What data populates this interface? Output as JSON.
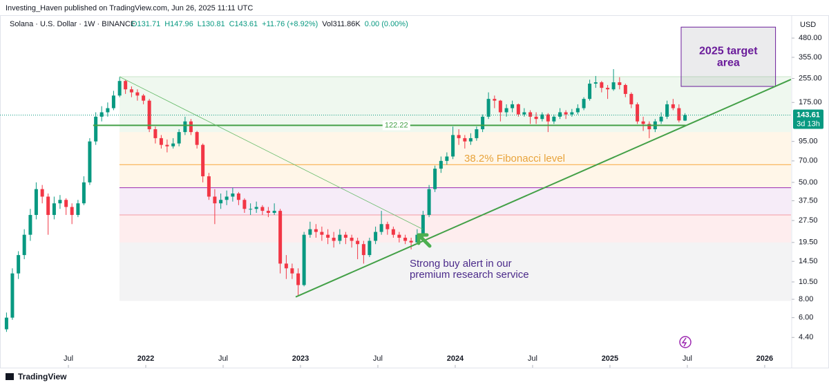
{
  "header": {
    "publisher": "Investing_Haven published on TradingView.com, Jun 26, 2025 11:11 UTC",
    "footer": "TradingView"
  },
  "chart_data": {
    "type": "candlestick",
    "symbol": "Solana · U.S. Dollar · 1W · BINANCE",
    "legend_values": [
      "O131.71",
      "H147.96",
      "L130.81",
      "C143.61",
      "+11.76 (+8.92%)"
    ],
    "volume": "Vol311.86K",
    "volume_change": "0.00 (0.00%)",
    "currency": "USD",
    "countdown": "3d 13h",
    "up_color": "#089981",
    "down_color": "#f23645",
    "log_scale": true,
    "xlim": [
      2021.058,
      2026.17
    ],
    "ylim": [
      2.74,
      687
    ],
    "xticks": [
      {
        "value": 2021.5,
        "label": "Jul"
      },
      2022,
      {
        "value": 2022.5,
        "label": "Jul"
      },
      2023,
      {
        "value": 2023.5,
        "label": "Jul"
      },
      2024,
      {
        "value": 2024.5,
        "label": "Jul"
      },
      2025,
      {
        "value": 2025.5,
        "label": "Jul"
      },
      2026
    ],
    "yticks": [
      {
        "value": 480,
        "label": "480.00"
      },
      {
        "value": 355,
        "label": "355.00"
      },
      {
        "value": 255,
        "label": "255.00"
      },
      {
        "value": 175,
        "label": "175.00"
      },
      {
        "value": 95,
        "label": "95.00"
      },
      {
        "value": 70,
        "label": "70.00"
      },
      {
        "value": 50,
        "label": "50.00"
      },
      {
        "value": 37.5,
        "label": "37.50"
      },
      {
        "value": 27.5,
        "label": "27.50"
      },
      {
        "value": 19.5,
        "label": "19.50"
      },
      {
        "value": 14.5,
        "label": "14.50"
      },
      {
        "value": 10.5,
        "label": "10.50"
      },
      {
        "value": 8,
        "label": "8.00"
      },
      {
        "value": 6,
        "label": "6.00"
      },
      {
        "value": 4.4,
        "label": "4.40"
      }
    ],
    "x": [
      2021.1,
      2021.138,
      2021.177,
      2021.215,
      2021.254,
      2021.292,
      2021.331,
      2021.369,
      2021.408,
      2021.446,
      2021.485,
      2021.523,
      2021.562,
      2021.6,
      2021.638,
      2021.677,
      2021.715,
      2021.754,
      2021.792,
      2021.831,
      2021.869,
      2021.908,
      2021.946,
      2021.985,
      2022.023,
      2022.062,
      2022.1,
      2022.138,
      2022.177,
      2022.215,
      2022.254,
      2022.292,
      2022.331,
      2022.369,
      2022.408,
      2022.446,
      2022.485,
      2022.523,
      2022.562,
      2022.6,
      2022.638,
      2022.677,
      2022.715,
      2022.754,
      2022.792,
      2022.831,
      2022.869,
      2022.908,
      2022.946,
      2022.985,
      2023.023,
      2023.062,
      2023.1,
      2023.138,
      2023.177,
      2023.215,
      2023.254,
      2023.292,
      2023.331,
      2023.369,
      2023.408,
      2023.446,
      2023.485,
      2023.523,
      2023.562,
      2023.6,
      2023.638,
      2023.677,
      2023.715,
      2023.754,
      2023.792,
      2023.831,
      2023.869,
      2023.908,
      2023.946,
      2023.985,
      2024.023,
      2024.062,
      2024.1,
      2024.138,
      2024.177,
      2024.215,
      2024.254,
      2024.292,
      2024.331,
      2024.369,
      2024.408,
      2024.446,
      2024.485,
      2024.523,
      2024.562,
      2024.6,
      2024.638,
      2024.677,
      2024.715,
      2024.754,
      2024.792,
      2024.831,
      2024.869,
      2024.908,
      2024.946,
      2024.985,
      2025.023,
      2025.062,
      2025.1,
      2025.138,
      2025.177,
      2025.215,
      2025.254,
      2025.292,
      2025.331,
      2025.369,
      2025.408,
      2025.446,
      2025.485
    ],
    "candles": [
      [
        5,
        6.5,
        4.8,
        6
      ],
      [
        6,
        13,
        5.8,
        12
      ],
      [
        12,
        17,
        11,
        16
      ],
      [
        16,
        24,
        15,
        22
      ],
      [
        22,
        33,
        20,
        30
      ],
      [
        30,
        50,
        28,
        45
      ],
      [
        45,
        48,
        36,
        40
      ],
      [
        40,
        42,
        22,
        30
      ],
      [
        30,
        40,
        28,
        36
      ],
      [
        36,
        41,
        33,
        38
      ],
      [
        38,
        39,
        30,
        34
      ],
      [
        34,
        36,
        26,
        30
      ],
      [
        30,
        38,
        29,
        36
      ],
      [
        36,
        55,
        35,
        50
      ],
      [
        50,
        100,
        48,
        95
      ],
      [
        95,
        150,
        90,
        140
      ],
      [
        140,
        165,
        130,
        150
      ],
      [
        150,
        175,
        140,
        160
      ],
      [
        160,
        210,
        155,
        195
      ],
      [
        195,
        260,
        190,
        245
      ],
      [
        245,
        250,
        200,
        215
      ],
      [
        215,
        225,
        190,
        205
      ],
      [
        205,
        215,
        180,
        195
      ],
      [
        195,
        200,
        170,
        180
      ],
      [
        180,
        185,
        110,
        115
      ],
      [
        115,
        120,
        92,
        100
      ],
      [
        100,
        105,
        85,
        90
      ],
      [
        90,
        98,
        80,
        88
      ],
      [
        88,
        100,
        85,
        92
      ],
      [
        92,
        115,
        88,
        110
      ],
      [
        110,
        140,
        105,
        130
      ],
      [
        130,
        135,
        105,
        110
      ],
      [
        110,
        112,
        85,
        90
      ],
      [
        90,
        92,
        50,
        55
      ],
      [
        55,
        58,
        38,
        40
      ],
      [
        40,
        45,
        26,
        36
      ],
      [
        36,
        42,
        33,
        38
      ],
      [
        38,
        44,
        35,
        40
      ],
      [
        40,
        46,
        37,
        42
      ],
      [
        42,
        43,
        35,
        38
      ],
      [
        38,
        39,
        31,
        33
      ],
      [
        33,
        36,
        30,
        33
      ],
      [
        33,
        37,
        31,
        34
      ],
      [
        34,
        35,
        30,
        32
      ],
      [
        32,
        34,
        29,
        31
      ],
      [
        31,
        36,
        30,
        32
      ],
      [
        32,
        33,
        12,
        14
      ],
      [
        14,
        16,
        11,
        13
      ],
      [
        13,
        14,
        11,
        12
      ],
      [
        12,
        13,
        8.5,
        10
      ],
      [
        10,
        23,
        9.8,
        22
      ],
      [
        22,
        27,
        21,
        24
      ],
      [
        24,
        26,
        21,
        23
      ],
      [
        23,
        25,
        20,
        22
      ],
      [
        22,
        24,
        19,
        21
      ],
      [
        21,
        23,
        18,
        20
      ],
      [
        20,
        24,
        19,
        22
      ],
      [
        22,
        23,
        19,
        21
      ],
      [
        21,
        22,
        18,
        20
      ],
      [
        20,
        21,
        15,
        19
      ],
      [
        19,
        20,
        14,
        16
      ],
      [
        16,
        21,
        15.5,
        20
      ],
      [
        20,
        25,
        19,
        23
      ],
      [
        23,
        32,
        22,
        26
      ],
      [
        26,
        27,
        22,
        24
      ],
      [
        24,
        25,
        21,
        22
      ],
      [
        22,
        23,
        19.5,
        21
      ],
      [
        21,
        22,
        19,
        20
      ],
      [
        20,
        21,
        17.5,
        19.5
      ],
      [
        19.5,
        24,
        19,
        22
      ],
      [
        22,
        32,
        21,
        30
      ],
      [
        30,
        48,
        29,
        45
      ],
      [
        45,
        65,
        43,
        62
      ],
      [
        62,
        75,
        58,
        70
      ],
      [
        70,
        80,
        66,
        75
      ],
      [
        75,
        120,
        72,
        105
      ],
      [
        105,
        115,
        90,
        100
      ],
      [
        100,
        105,
        85,
        95
      ],
      [
        95,
        108,
        90,
        100
      ],
      [
        100,
        120,
        96,
        115
      ],
      [
        115,
        145,
        110,
        140
      ],
      [
        140,
        205,
        135,
        185
      ],
      [
        185,
        195,
        160,
        180
      ],
      [
        180,
        182,
        130,
        150
      ],
      [
        150,
        170,
        140,
        160
      ],
      [
        160,
        180,
        150,
        170
      ],
      [
        170,
        172,
        140,
        145
      ],
      [
        145,
        160,
        140,
        150
      ],
      [
        150,
        155,
        125,
        140
      ],
      [
        140,
        150,
        125,
        135
      ],
      [
        135,
        150,
        130,
        145
      ],
      [
        145,
        148,
        110,
        130
      ],
      [
        130,
        145,
        125,
        140
      ],
      [
        140,
        160,
        135,
        150
      ],
      [
        150,
        155,
        135,
        145
      ],
      [
        145,
        158,
        140,
        150
      ],
      [
        150,
        170,
        145,
        160
      ],
      [
        160,
        190,
        155,
        185
      ],
      [
        185,
        250,
        180,
        235
      ],
      [
        235,
        265,
        220,
        240
      ],
      [
        240,
        245,
        205,
        220
      ],
      [
        220,
        230,
        185,
        215
      ],
      [
        215,
        295,
        210,
        240
      ],
      [
        240,
        260,
        215,
        230
      ],
      [
        230,
        235,
        190,
        200
      ],
      [
        200,
        205,
        160,
        170
      ],
      [
        170,
        175,
        125,
        130
      ],
      [
        130,
        140,
        112,
        125
      ],
      [
        125,
        130,
        100,
        115
      ],
      [
        115,
        135,
        110,
        130
      ],
      [
        130,
        150,
        125,
        140
      ],
      [
        140,
        180,
        135,
        170
      ],
      [
        170,
        185,
        155,
        160
      ],
      [
        160,
        170,
        128,
        132
      ],
      [
        131.71,
        147.96,
        130.81,
        143.61
      ]
    ],
    "zone_start": 2021.83,
    "zones": [
      {
        "top": 262,
        "bottom": 110,
        "color": "rgba(76,175,80,0.09)"
      },
      {
        "top": 110,
        "bottom": 46,
        "color": "rgba(255,152,0,0.09)"
      },
      {
        "top": 46,
        "bottom": 30,
        "color": "rgba(156,39,176,0.09)"
      },
      {
        "top": 30,
        "bottom": 19.5,
        "color": "rgba(242,54,69,0.09)"
      },
      {
        "top": 19.5,
        "bottom": 7.8,
        "color": "rgba(120,123,134,0.09)"
      }
    ],
    "levels": [
      {
        "value": 66,
        "color": "#f7a53b"
      },
      {
        "value": 46,
        "color": "#9c27b0"
      },
      {
        "value": 30,
        "color": "#f49ca4"
      }
    ],
    "lines": [
      {
        "x": [
          2021.66,
          2025.49
        ],
        "y": [
          122.22,
          122.22
        ],
        "color": "#43a047",
        "width": 2
      },
      {
        "x": [
          2022.969,
          2026.17
        ],
        "y": [
          8.3,
          251
        ],
        "color": "#43a047",
        "width": 2
      },
      {
        "x": [
          2021.83,
          2023.79
        ],
        "y": [
          262,
          24
        ],
        "color": "#66bb6a",
        "width": 0.8
      }
    ],
    "fib_label": "38.2% Fibonacci level",
    "buy_alert": [
      "Strong buy alert in our",
      "premium research service"
    ],
    "target": {
      "text": [
        "2025 target",
        "area"
      ],
      "x": [
        2025.46,
        2026.07
      ],
      "y": [
        570,
        225
      ]
    }
  }
}
